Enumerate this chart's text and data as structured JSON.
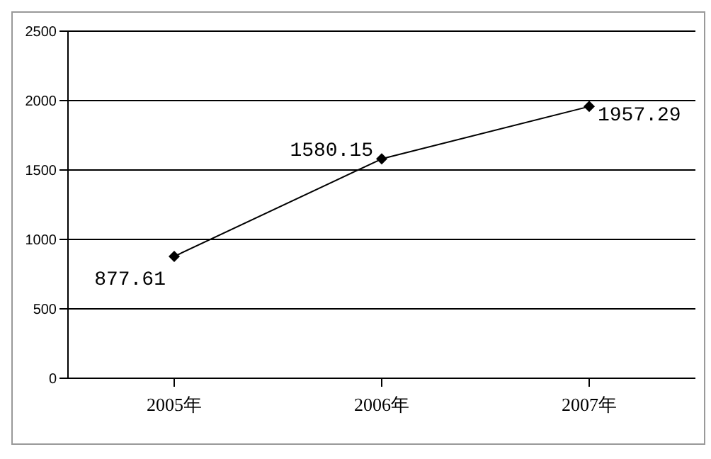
{
  "chart_data": {
    "type": "line",
    "categories": [
      "2005年",
      "2006年",
      "2007年"
    ],
    "series": [
      {
        "color": "#000000",
        "values": [
          877.61,
          1580.15,
          1957.29
        ]
      }
    ],
    "ylim": [
      0,
      2500
    ],
    "yticks": [
      0,
      500,
      1000,
      1500,
      2000,
      2500
    ],
    "grid": "y",
    "legend": false,
    "marker": "diamond",
    "line_style": "solid",
    "data_labels": true
  }
}
